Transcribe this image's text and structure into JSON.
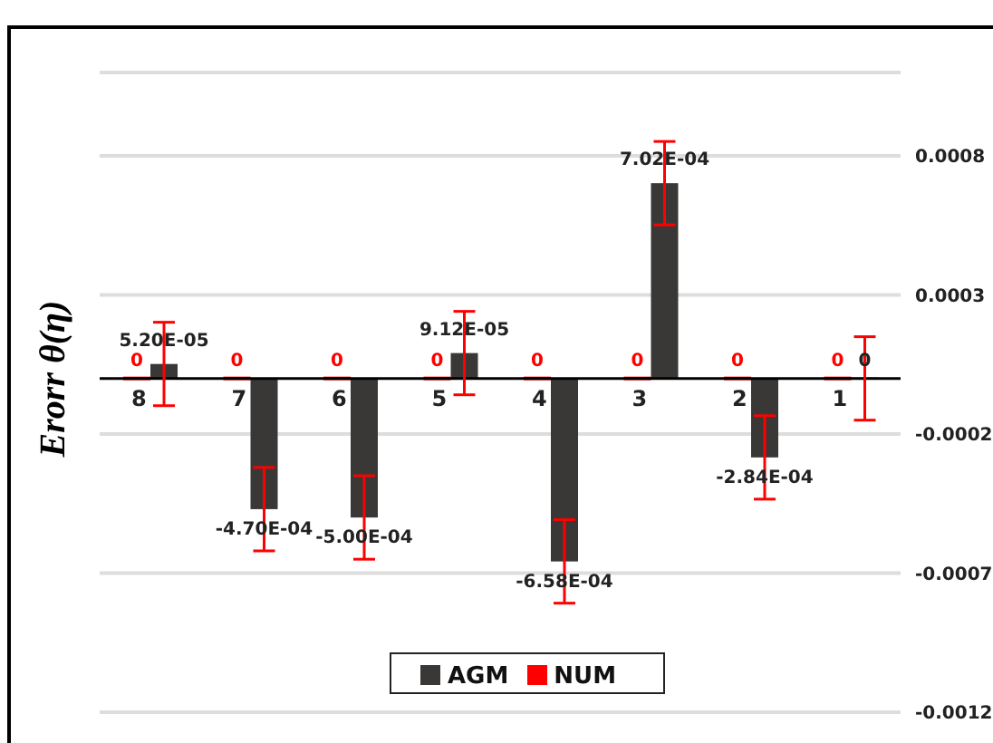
{
  "chart_data": {
    "type": "bar",
    "ylabel": "Erorr θ(η)",
    "categories": [
      "8",
      "7",
      "6",
      "5",
      "4",
      "3",
      "2",
      "1"
    ],
    "series": [
      {
        "name": "AGM",
        "color": "#3a3836",
        "values": [
          5.2e-05,
          -0.00047,
          -0.0005,
          9.12e-05,
          -0.000658,
          0.000702,
          -0.000284,
          0
        ],
        "errors": [
          0.00015,
          0.00015,
          0.00015,
          0.00015,
          0.00015,
          0.00015,
          0.00015,
          0.00015
        ],
        "value_labels": [
          "5.20E-05",
          "-4.70E-04",
          "-5.00E-04",
          "9.12E-05",
          "-6.58E-04",
          "7.02E-04",
          "-2.84E-04",
          "0"
        ]
      },
      {
        "name": "NUM",
        "color": "#ff0000",
        "values": [
          0,
          0,
          0,
          0,
          0,
          0,
          0,
          0
        ],
        "value_labels": [
          "0",
          "0",
          "0",
          "0",
          "0",
          "0",
          "0",
          "0"
        ]
      }
    ],
    "ylim": [
      -0.0012,
      0.0011
    ],
    "yticks": [
      0.0008,
      0.0003,
      -0.0002,
      -0.0007,
      -0.0012
    ],
    "grid": "y",
    "legend": "bottom"
  }
}
